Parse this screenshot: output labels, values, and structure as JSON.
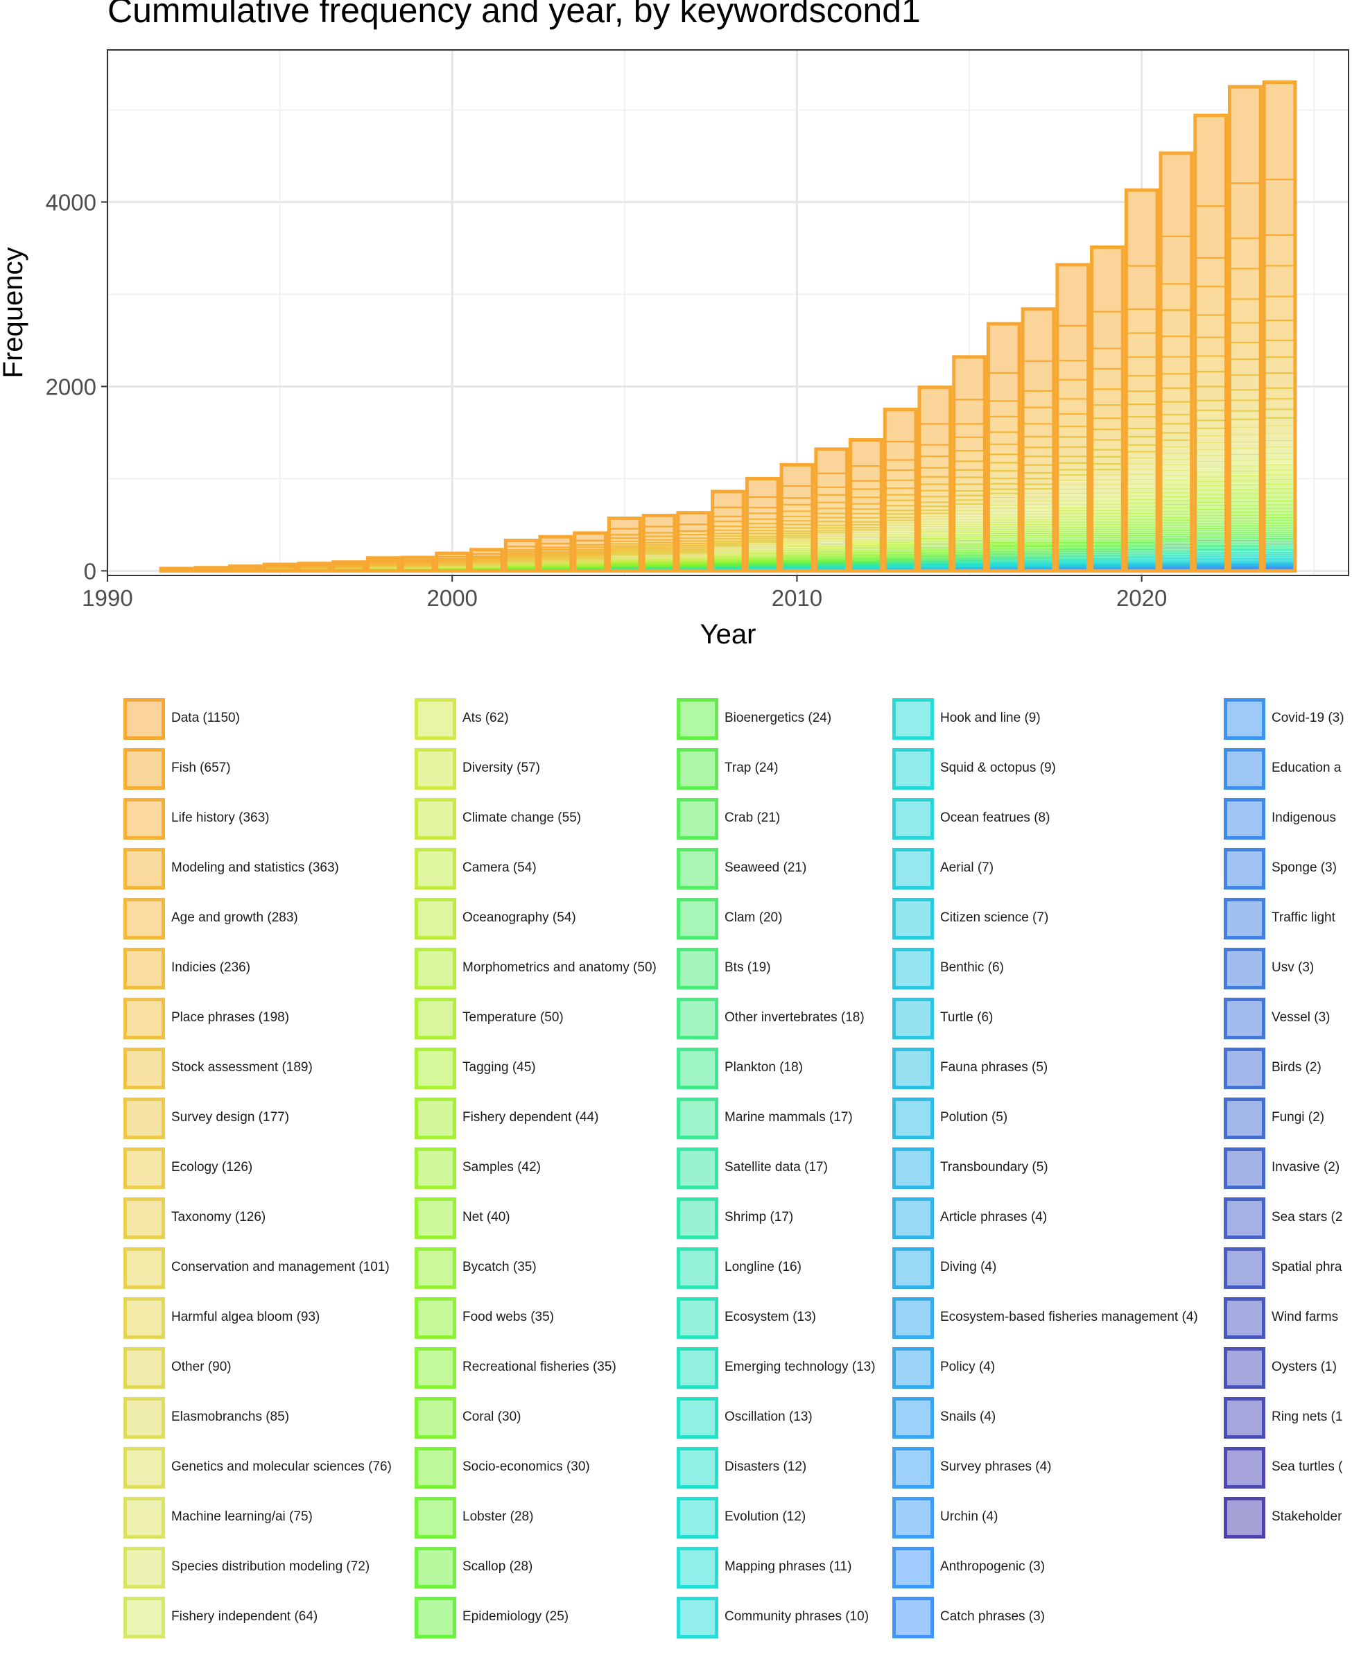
{
  "chart_data": {
    "type": "bar",
    "title": "Cummulative frequency and year, by keywordscond1",
    "xlabel": "Year",
    "ylabel": "Frequency",
    "xlim": [
      1990,
      2026
    ],
    "ylim": [
      -50,
      5650
    ],
    "x_ticks": [
      1990,
      2000,
      2010,
      2020
    ],
    "y_ticks": [
      0,
      2000,
      4000
    ],
    "grid": true,
    "legend_position": "bottom",
    "years": [
      1992,
      1993,
      1994,
      1995,
      1996,
      1997,
      1998,
      1999,
      2000,
      2001,
      2002,
      2003,
      2004,
      2005,
      2006,
      2007,
      2008,
      2009,
      2010,
      2011,
      2012,
      2013,
      2014,
      2015,
      2016,
      2017,
      2018,
      2019,
      2020,
      2021,
      2022,
      2023,
      2024
    ],
    "totals": [
      25,
      35,
      50,
      70,
      80,
      95,
      140,
      145,
      190,
      230,
      330,
      370,
      410,
      570,
      600,
      630,
      860,
      1000,
      1150,
      1320,
      1420,
      1750,
      1990,
      2320,
      2680,
      2840,
      3320,
      3510,
      4130,
      4530,
      4940,
      5250,
      5300
    ],
    "series": [
      {
        "name": "Data (1150)",
        "color": "#F7A832"
      },
      {
        "name": "Fish (657)",
        "color": "#F7AC34"
      },
      {
        "name": "Life history (363)",
        "color": "#F6B037"
      },
      {
        "name": "Modeling and statistics (363)",
        "color": "#F5B43A"
      },
      {
        "name": "Age and growth (283)",
        "color": "#F4B83D"
      },
      {
        "name": "Indicies (236)",
        "color": "#F2BC40"
      },
      {
        "name": "Place phrases (198)",
        "color": "#F1C043"
      },
      {
        "name": "Stock assessment (189)",
        "color": "#EFC446"
      },
      {
        "name": "Survey design (177)",
        "color": "#EDC849"
      },
      {
        "name": "Ecology (126)",
        "color": "#EBCB4C"
      },
      {
        "name": "Taxonomy (126)",
        "color": "#E9CF4F"
      },
      {
        "name": "Conservation and management (101)",
        "color": "#E7D252"
      },
      {
        "name": "Harmful algea bloom (93)",
        "color": "#E5D655"
      },
      {
        "name": "Other (90)",
        "color": "#E3D958"
      },
      {
        "name": "Elasmobranchs (85)",
        "color": "#E1DC5B"
      },
      {
        "name": "Genetics and molecular sciences (76)",
        "color": "#DEDF5E"
      },
      {
        "name": "Machine learning/ai (75)",
        "color": "#DCE261"
      },
      {
        "name": "Species distribution modeling (72)",
        "color": "#D9E564"
      },
      {
        "name": "Fishery independent (64)",
        "color": "#D6E867"
      },
      {
        "name": "Ats (62)",
        "color": "#D4E94B"
      },
      {
        "name": "Diversity (57)",
        "color": "#CEEA47"
      },
      {
        "name": "Climate change (55)",
        "color": "#C8EB44"
      },
      {
        "name": "Camera (54)",
        "color": "#C2EC41"
      },
      {
        "name": "Oceanography (54)",
        "color": "#BCED3E"
      },
      {
        "name": "Morphometrics and anatomy (50)",
        "color": "#B6EE3B"
      },
      {
        "name": "Temperature (50)",
        "color": "#B0EF39"
      },
      {
        "name": "Tagging (45)",
        "color": "#AAF037"
      },
      {
        "name": "Fishery dependent (44)",
        "color": "#A4F035"
      },
      {
        "name": "Samples (42)",
        "color": "#9EF134"
      },
      {
        "name": "Net (40)",
        "color": "#98F233"
      },
      {
        "name": "Bycatch (35)",
        "color": "#92F233"
      },
      {
        "name": "Food webs (35)",
        "color": "#8CF333"
      },
      {
        "name": "Recreational fisheries (35)",
        "color": "#86F334"
      },
      {
        "name": "Coral (30)",
        "color": "#80F335"
      },
      {
        "name": "Socio-economics (30)",
        "color": "#7AF337"
      },
      {
        "name": "Lobster (28)",
        "color": "#74F339"
      },
      {
        "name": "Scallop (28)",
        "color": "#6EF33C"
      },
      {
        "name": "Epidemiology (25)",
        "color": "#68F33F"
      },
      {
        "name": "Bioenergetics (24)",
        "color": "#62F046"
      },
      {
        "name": "Trap (24)",
        "color": "#5DEF50"
      },
      {
        "name": "Crab (21)",
        "color": "#58EE5A"
      },
      {
        "name": "Seaweed (21)",
        "color": "#53ED64"
      },
      {
        "name": "Clam (20)",
        "color": "#4EEC6E"
      },
      {
        "name": "Bts (19)",
        "color": "#49EB78"
      },
      {
        "name": "Other invertebrates (18)",
        "color": "#44EA82"
      },
      {
        "name": "Plankton (18)",
        "color": "#3FE98C"
      },
      {
        "name": "Marine mammals (17)",
        "color": "#3AE896"
      },
      {
        "name": "Satellite data (17)",
        "color": "#35E7A0"
      },
      {
        "name": "Shrimp (17)",
        "color": "#30E6AA"
      },
      {
        "name": "Longline (16)",
        "color": "#2CE5B2"
      },
      {
        "name": "Ecosystem (13)",
        "color": "#28E4BA"
      },
      {
        "name": "Emerging technology (13)",
        "color": "#25E3C1"
      },
      {
        "name": "Oscillation (13)",
        "color": "#23E2C7"
      },
      {
        "name": "Disasters (12)",
        "color": "#22E1CC"
      },
      {
        "name": "Evolution (12)",
        "color": "#22E0D1"
      },
      {
        "name": "Mapping phrases (11)",
        "color": "#23DFD5"
      },
      {
        "name": "Community phrases (10)",
        "color": "#25DED9"
      },
      {
        "name": "Hook and line (9)",
        "color": "#27DCD6"
      },
      {
        "name": "Squid & octopus (9)",
        "color": "#27D8D8"
      },
      {
        "name": "Ocean featrues (8)",
        "color": "#27D4DA"
      },
      {
        "name": "Aerial (7)",
        "color": "#28D0DC"
      },
      {
        "name": "Citizen science (7)",
        "color": "#29CCDE"
      },
      {
        "name": "Benthic (6)",
        "color": "#2AC8E0"
      },
      {
        "name": "Turtle (6)",
        "color": "#2BC4E2"
      },
      {
        "name": "Fauna phrases (5)",
        "color": "#2CC0E4"
      },
      {
        "name": "Polution (5)",
        "color": "#2DBCE6"
      },
      {
        "name": "Transboundary (5)",
        "color": "#2EB8E8"
      },
      {
        "name": "Article phrases (4)",
        "color": "#30B4EA"
      },
      {
        "name": "Diving (4)",
        "color": "#32B0EC"
      },
      {
        "name": "Ecosystem-based fisheries management (4)",
        "color": "#34ACEE"
      },
      {
        "name": "Policy (4)",
        "color": "#36A8F0"
      },
      {
        "name": "Snails (4)",
        "color": "#38A4F2"
      },
      {
        "name": "Survey phrases (4)",
        "color": "#3AA0F4"
      },
      {
        "name": "Urchin (4)",
        "color": "#3C9CF6"
      },
      {
        "name": "Anthropogenic (3)",
        "color": "#3E98F8"
      },
      {
        "name": "Catch phrases (3)",
        "color": "#4094FA"
      },
      {
        "name": "Covid-19 (3)",
        "color": "#3D94F0"
      },
      {
        "name": "Education a",
        "color": "#3E8FEC"
      },
      {
        "name": "Indigenous",
        "color": "#3F8AE8"
      },
      {
        "name": "Sponge (3)",
        "color": "#4085E4"
      },
      {
        "name": "Traffic light",
        "color": "#4180E0"
      },
      {
        "name": "Usv (3)",
        "color": "#427BDC"
      },
      {
        "name": "Vessel (3)",
        "color": "#4376D8"
      },
      {
        "name": "Birds (2)",
        "color": "#4471D4"
      },
      {
        "name": "Fungi (2)",
        "color": "#456CD0"
      },
      {
        "name": "Invasive (2)",
        "color": "#4667CC"
      },
      {
        "name": "Sea stars (2",
        "color": "#4762C8"
      },
      {
        "name": "Spatial phra",
        "color": "#485DC4"
      },
      {
        "name": "Wind farms",
        "color": "#4958C0"
      },
      {
        "name": "Oysters (1)",
        "color": "#4A53BC"
      },
      {
        "name": "Ring nets (1",
        "color": "#4B4EB8"
      },
      {
        "name": "Sea turtles (",
        "color": "#4C49B4"
      },
      {
        "name": "Stakeholder",
        "color": "#4D44B0"
      }
    ]
  }
}
